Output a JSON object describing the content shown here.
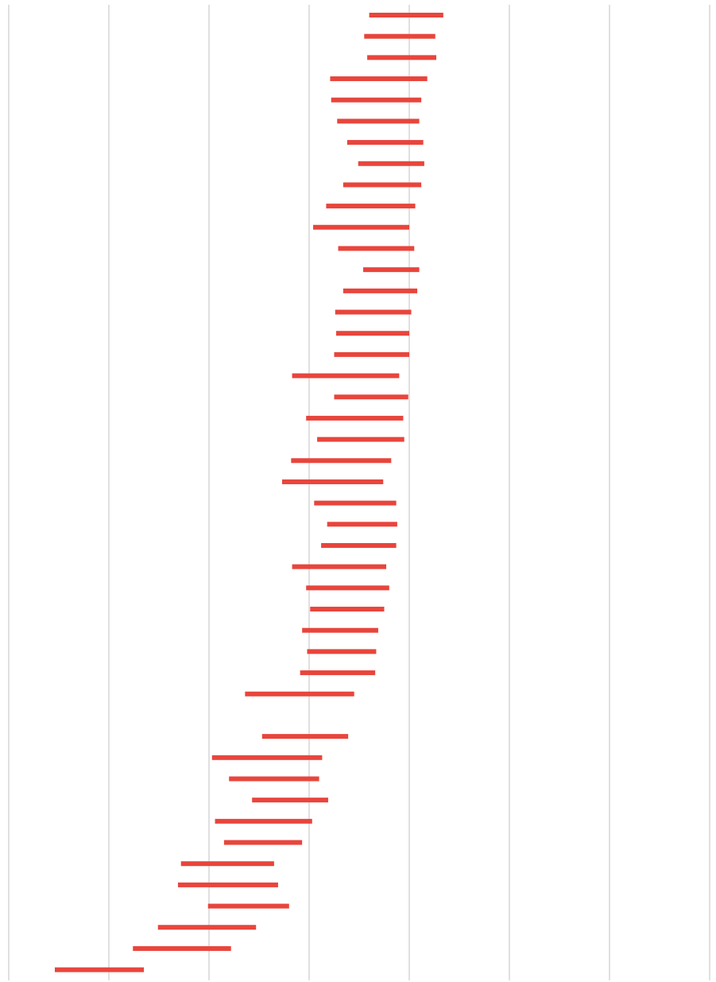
{
  "chart_data": {
    "type": "bar",
    "orientation": "horizontal",
    "style": "floating-range",
    "title": "",
    "xlabel": "",
    "ylabel": "",
    "xlim": [
      0,
      7
    ],
    "x_grid_ticks": [
      0,
      1,
      2,
      3,
      4,
      5,
      6,
      7
    ],
    "grid": true,
    "legend": "none",
    "bar_color": "#E8453C",
    "grid_color": "#e0e0e0",
    "rows": 46,
    "ranges": [
      {
        "row": 0,
        "start": 3.6,
        "end": 4.34
      },
      {
        "row": 1,
        "start": 3.55,
        "end": 4.26
      },
      {
        "row": 2,
        "start": 3.58,
        "end": 4.27
      },
      {
        "row": 3,
        "start": 3.21,
        "end": 4.18
      },
      {
        "row": 4,
        "start": 3.22,
        "end": 4.12
      },
      {
        "row": 5,
        "start": 3.28,
        "end": 4.1
      },
      {
        "row": 6,
        "start": 3.38,
        "end": 4.14
      },
      {
        "row": 7,
        "start": 3.49,
        "end": 4.15
      },
      {
        "row": 8,
        "start": 3.34,
        "end": 4.12
      },
      {
        "row": 9,
        "start": 3.17,
        "end": 4.06
      },
      {
        "row": 10,
        "start": 3.04,
        "end": 4.0
      },
      {
        "row": 11,
        "start": 3.29,
        "end": 4.05
      },
      {
        "row": 12,
        "start": 3.54,
        "end": 4.1
      },
      {
        "row": 13,
        "start": 3.34,
        "end": 4.08
      },
      {
        "row": 14,
        "start": 3.26,
        "end": 4.02
      },
      {
        "row": 15,
        "start": 3.27,
        "end": 4.0
      },
      {
        "row": 16,
        "start": 3.25,
        "end": 4.0
      },
      {
        "row": 17,
        "start": 2.83,
        "end": 3.9
      },
      {
        "row": 18,
        "start": 3.25,
        "end": 3.99
      },
      {
        "row": 19,
        "start": 2.97,
        "end": 3.94
      },
      {
        "row": 20,
        "start": 3.08,
        "end": 3.95
      },
      {
        "row": 21,
        "start": 2.82,
        "end": 3.82
      },
      {
        "row": 22,
        "start": 2.73,
        "end": 3.74
      },
      {
        "row": 23,
        "start": 3.05,
        "end": 3.87
      },
      {
        "row": 24,
        "start": 3.18,
        "end": 3.88
      },
      {
        "row": 25,
        "start": 3.12,
        "end": 3.87
      },
      {
        "row": 26,
        "start": 2.83,
        "end": 3.77
      },
      {
        "row": 27,
        "start": 2.97,
        "end": 3.8
      },
      {
        "row": 28,
        "start": 3.01,
        "end": 3.75
      },
      {
        "row": 29,
        "start": 2.93,
        "end": 3.69
      },
      {
        "row": 30,
        "start": 2.98,
        "end": 3.67
      },
      {
        "row": 31,
        "start": 2.91,
        "end": 3.66
      },
      {
        "row": 32,
        "start": 2.36,
        "end": 3.45
      },
      {
        "row": 34,
        "start": 2.53,
        "end": 3.39
      },
      {
        "row": 35,
        "start": 2.03,
        "end": 3.13
      },
      {
        "row": 36,
        "start": 2.2,
        "end": 3.1
      },
      {
        "row": 37,
        "start": 2.43,
        "end": 3.19
      },
      {
        "row": 38,
        "start": 2.06,
        "end": 3.03
      },
      {
        "row": 39,
        "start": 2.15,
        "end": 2.93
      },
      {
        "row": 40,
        "start": 1.72,
        "end": 2.65
      },
      {
        "row": 41,
        "start": 1.69,
        "end": 2.69
      },
      {
        "row": 42,
        "start": 1.99,
        "end": 2.8
      },
      {
        "row": 43,
        "start": 1.49,
        "end": 2.47
      },
      {
        "row": 44,
        "start": 1.24,
        "end": 2.22
      },
      {
        "row": 45,
        "start": 0.46,
        "end": 1.35
      }
    ]
  }
}
